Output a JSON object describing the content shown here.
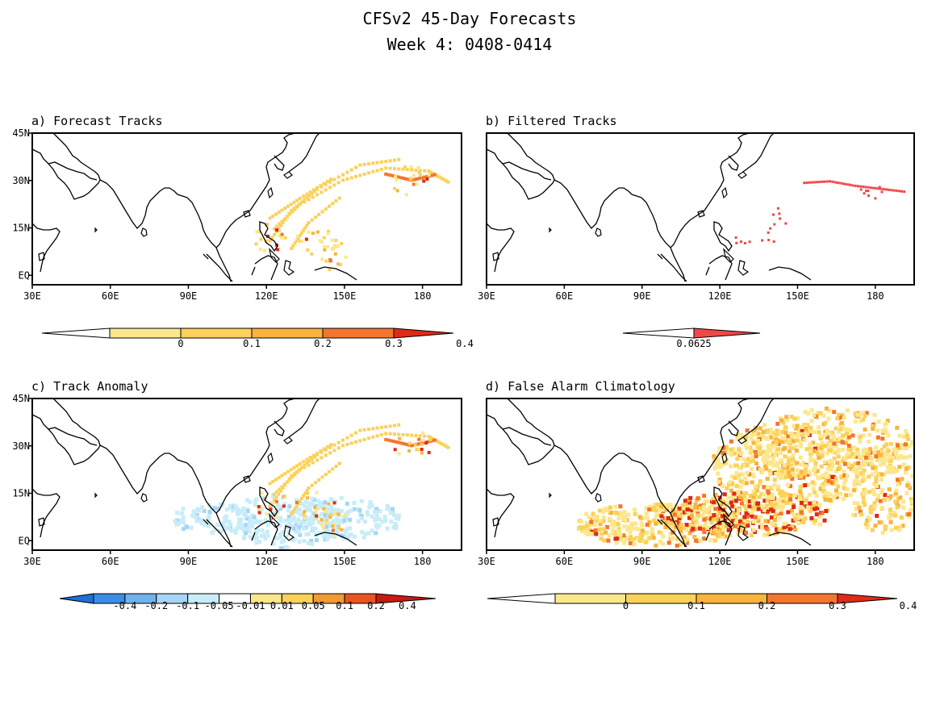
{
  "title": {
    "line1": "CFSv2 45-Day Forecasts",
    "line2": "Week 4: 0408-0414"
  },
  "panels": [
    {
      "id": "a",
      "label": "a) Forecast Tracks",
      "lon_ticks": [
        "30E",
        "60E",
        "90E",
        "120E",
        "150E",
        "180"
      ],
      "lat_ticks": [
        "45N",
        "30N",
        "15N",
        "EQ"
      ],
      "colorbar": {
        "labels": [
          "0",
          "0.1",
          "0.2",
          "0.3",
          "0.4"
        ],
        "colors": [
          "#ffffff",
          "#fde78b",
          "#fbd15a",
          "#f8b43d",
          "#f4762e",
          "#e02a17"
        ]
      }
    },
    {
      "id": "b",
      "label": "b) Filtered Tracks",
      "lon_ticks": [
        "30E",
        "60E",
        "90E",
        "120E",
        "150E",
        "180"
      ],
      "lat_ticks": [],
      "colorbar": {
        "labels": [
          "0.0625"
        ],
        "colors": [
          "#ffffff",
          "#ef4848"
        ]
      }
    },
    {
      "id": "c",
      "label": "c) Track Anomaly",
      "lon_ticks": [
        "30E",
        "60E",
        "90E",
        "120E",
        "150E",
        "180"
      ],
      "lat_ticks": [
        "45N",
        "30N",
        "15N",
        "EQ"
      ],
      "colorbar": {
        "labels": [
          "-0.4",
          "-0.2",
          "-0.1",
          "-0.05",
          "-0.01",
          "0.01",
          "0.05",
          "0.1",
          "0.2",
          "0.4"
        ],
        "colors": [
          "#1e6fd8",
          "#3a8ee6",
          "#6fb2ef",
          "#a6d5f6",
          "#c8ecf8",
          "#ffffff",
          "#fde78b",
          "#fbd15a",
          "#f39a33",
          "#e8551f",
          "#c81a10"
        ]
      }
    },
    {
      "id": "d",
      "label": "d) False Alarm Climatology",
      "lon_ticks": [
        "30E",
        "60E",
        "90E",
        "120E",
        "150E",
        "180"
      ],
      "lat_ticks": [],
      "colorbar": {
        "labels": [
          "0",
          "0.1",
          "0.2",
          "0.3",
          "0.4"
        ],
        "colors": [
          "#ffffff",
          "#fde78b",
          "#fbd15a",
          "#f8b43d",
          "#f4762e",
          "#e02a17"
        ]
      }
    }
  ],
  "map_extent": {
    "lon_range": [
      30,
      195
    ],
    "lat_range": [
      -3,
      45
    ]
  }
}
